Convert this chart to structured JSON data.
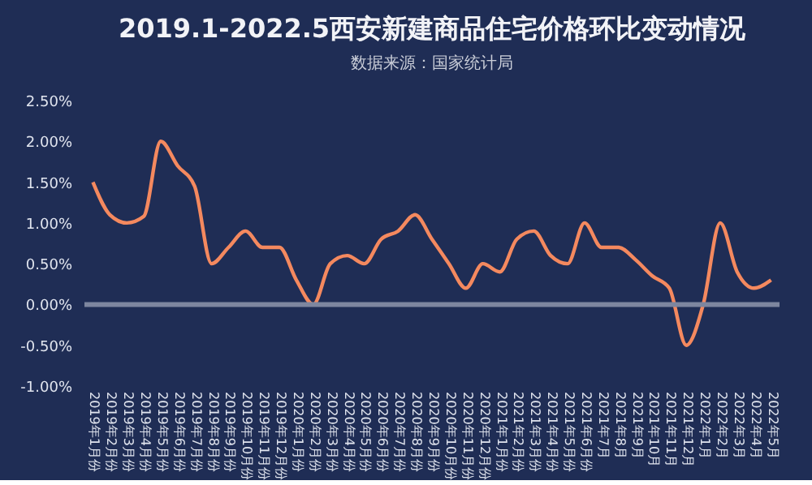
{
  "chart_data": {
    "type": "line",
    "title": "2019.1-2022.5西安新建商品住宅价格环比变动情况",
    "subtitle": "数据来源：国家统计局",
    "categories": [
      "2019年1月份",
      "2019年2月份",
      "2019年3月份",
      "2019年4月份",
      "2019年5月份",
      "2019年6月份",
      "2019年7月份",
      "2019年8月份",
      "2019年9月份",
      "2019年10月份",
      "2019年11月份",
      "2019年12月份",
      "2020年1月份",
      "2020年2月份",
      "2020年3月份",
      "2020年4月份",
      "2020年5月份",
      "2020年6月份",
      "2020年7月份",
      "2020年8月份",
      "2020年9月份",
      "2020年10月份",
      "2020年11月份",
      "2020年12月份",
      "2021年1月份",
      "2021年2月份",
      "2021年3月份",
      "2021年4月份",
      "2021年5月份",
      "2021年6月份",
      "2021年7月",
      "2021年8月",
      "2021年9月",
      "2021年10月",
      "2021年11月",
      "2021年12月",
      "2022年1月",
      "2022年2月",
      "2022年3月",
      "2022年4月",
      "2022年5月"
    ],
    "series": [
      {
        "color": "#f4895f",
        "values": [
          1.5,
          1.1,
          1.0,
          1.08,
          2.0,
          1.7,
          1.45,
          0.5,
          0.7,
          0.9,
          0.7,
          0.7,
          0.3,
          0.0,
          0.5,
          0.6,
          0.5,
          0.8,
          0.9,
          1.1,
          0.8,
          0.5,
          0.2,
          0.5,
          0.4,
          0.8,
          0.9,
          0.6,
          0.5,
          1.0,
          0.7,
          0.7,
          0.55,
          0.35,
          0.2,
          -0.5,
          0.0,
          1.0,
          0.4,
          0.2,
          0.3
        ]
      }
    ],
    "ylim": [
      -1.0,
      2.5
    ],
    "yticks": [
      {
        "value": -1.0,
        "label": "-1.00%"
      },
      {
        "value": -0.5,
        "label": "-0.50%"
      },
      {
        "value": 0,
        "label": "0.00%"
      },
      {
        "value": 0.5,
        "label": "0.50%"
      },
      {
        "value": 1.0,
        "label": "1.00%"
      },
      {
        "value": 1.5,
        "label": "1.50%"
      },
      {
        "value": 2.0,
        "label": "2.00%"
      },
      {
        "value": 2.5,
        "label": "2.50%"
      }
    ],
    "ref_lines": [
      {
        "axis": "y",
        "value": 0,
        "color": "#7d869f"
      }
    ],
    "grid": false,
    "legend": false,
    "marker": "none",
    "line_style": "solid"
  }
}
